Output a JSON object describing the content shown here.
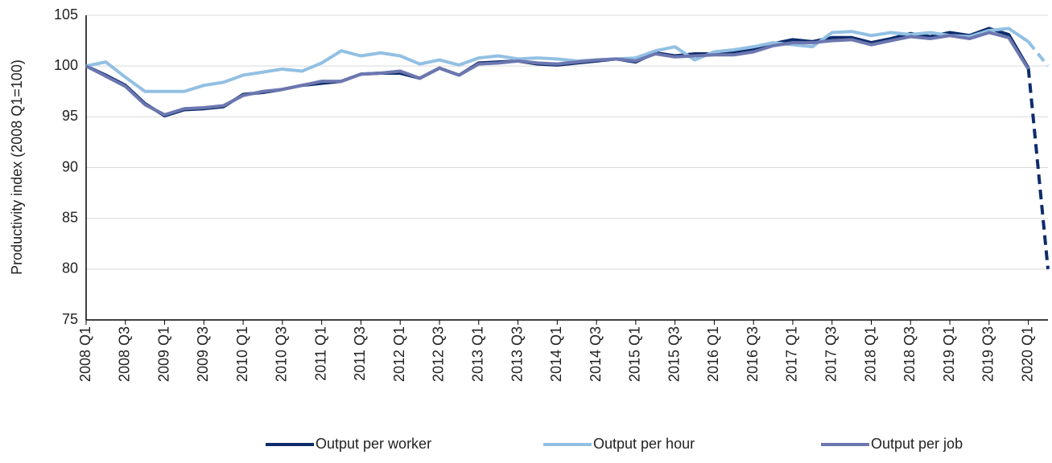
{
  "chart_data": {
    "type": "line",
    "y_label": "Productivity index (2008 Q1=100)",
    "categories": [
      "2008 Q1",
      null,
      "2008 Q3",
      null,
      "2009 Q1",
      null,
      "2009 Q3",
      null,
      "2010 Q1",
      null,
      "2010 Q3",
      null,
      "2011 Q1",
      null,
      "2011 Q3",
      null,
      "2012 Q1",
      null,
      "2012 Q3",
      null,
      "2013 Q1",
      null,
      "2013 Q3",
      null,
      "2014 Q1",
      null,
      "2014 Q3",
      null,
      "2015 Q1",
      null,
      "2015 Q3",
      null,
      "2016 Q1",
      null,
      "2016 Q3",
      null,
      "2017 Q1",
      null,
      "2017 Q3",
      null,
      "2018 Q1",
      null,
      "2018 Q3",
      null,
      "2019 Q1",
      null,
      "2019 Q3",
      null,
      "2020 Q1",
      null
    ],
    "dashed_from": "2020 Q1",
    "series": [
      {
        "name": "Output per worker",
        "color": "#0d2c6b",
        "values": [
          100,
          99.1,
          98.1,
          96.3,
          95.1,
          95.7,
          95.8,
          96.0,
          97.2,
          97.4,
          97.7,
          98.1,
          98.3,
          98.5,
          99.2,
          99.3,
          99.3,
          98.8,
          99.8,
          99.1,
          100.3,
          100.4,
          100.5,
          100.2,
          100.1,
          100.3,
          100.5,
          100.7,
          100.4,
          101.3,
          101.0,
          101.2,
          101.2,
          101.3,
          101.6,
          102.2,
          102.6,
          102.4,
          102.8,
          102.8,
          102.3,
          102.7,
          103.2,
          102.9,
          103.3,
          103.0,
          103.7,
          103.1,
          99.8,
          80
        ]
      },
      {
        "name": "Output per hour",
        "color": "#92c0e3",
        "values": [
          100,
          100.4,
          98.9,
          97.5,
          97.5,
          97.5,
          98.1,
          98.4,
          99.1,
          99.4,
          99.7,
          99.5,
          100.3,
          101.5,
          101.0,
          101.3,
          101.0,
          100.2,
          100.6,
          100.1,
          100.8,
          101.0,
          100.7,
          100.8,
          100.7,
          100.5,
          100.6,
          100.7,
          100.8,
          101.5,
          101.9,
          100.6,
          101.4,
          101.6,
          101.9,
          102.3,
          102.1,
          101.9,
          103.3,
          103.4,
          103.0,
          103.3,
          103.1,
          103.3,
          103.0,
          102.9,
          103.5,
          103.7,
          102.4,
          100.0
        ]
      },
      {
        "name": "Output per job",
        "color": "#6c77b0",
        "values": [
          100,
          99.0,
          98.0,
          96.2,
          95.2,
          95.8,
          95.9,
          96.1,
          97.1,
          97.5,
          97.7,
          98.1,
          98.5,
          98.5,
          99.2,
          99.3,
          99.5,
          98.8,
          99.8,
          99.1,
          100.2,
          100.3,
          100.5,
          100.3,
          100.2,
          100.4,
          100.6,
          100.7,
          100.5,
          101.2,
          100.9,
          101.0,
          101.1,
          101.1,
          101.4,
          102.0,
          102.3,
          102.3,
          102.5,
          102.6,
          102.1,
          102.5,
          102.9,
          102.7,
          103.0,
          102.7,
          103.3,
          102.8,
          99.7,
          null
        ]
      }
    ],
    "ylim": [
      75,
      105
    ],
    "yticks": [
      75,
      80,
      85,
      90,
      95,
      100,
      105
    ],
    "grid": true,
    "legend": "bottom"
  }
}
